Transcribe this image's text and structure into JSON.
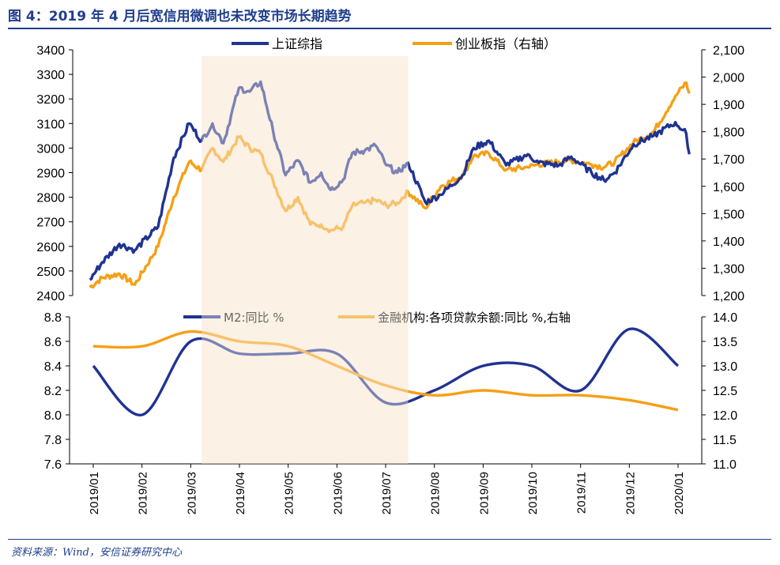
{
  "title": "图 4：2019 年 4 月后宽信用微调也未改变市场长期趋势",
  "source": "资料来源：Wind，安信证券研究中心",
  "colors": {
    "navy": "#1f3392",
    "orange": "#f5a016",
    "shade": "#fbf1e5",
    "title_blue": "#1f3e8c"
  },
  "chart_data": [
    {
      "type": "line",
      "panel": "top",
      "shaded_range": [
        "2019-03-15",
        "2019-07-26"
      ],
      "legend": [
        "上证综指",
        "创业板指（右轴）"
      ],
      "yleft": {
        "ylim": [
          2400,
          3400
        ],
        "ticks": [
          "2400",
          "2500",
          "2600",
          "2700",
          "2800",
          "2900",
          "3000",
          "3100",
          "3200",
          "3300",
          "3400"
        ]
      },
      "yright": {
        "ylim": [
          1200,
          2100
        ],
        "ticks": [
          "1,200",
          "1,300",
          "1,400",
          "1,500",
          "1,600",
          "1,700",
          "1,800",
          "1,900",
          "2,000",
          "2,100"
        ]
      },
      "series": [
        {
          "name": "上证综指",
          "axis": "left",
          "points": [
            [
              "2019-01-02",
              2465
            ],
            [
              "2019-01-10",
              2535
            ],
            [
              "2019-01-21",
              2610
            ],
            [
              "2019-01-31",
              2585
            ],
            [
              "2019-02-15",
              2680
            ],
            [
              "2019-02-25",
              2960
            ],
            [
              "2019-03-07",
              3100
            ],
            [
              "2019-03-15",
              3030
            ],
            [
              "2019-03-22",
              3100
            ],
            [
              "2019-03-29",
              3020
            ],
            [
              "2019-04-08",
              3245
            ],
            [
              "2019-04-15",
              3230
            ],
            [
              "2019-04-22",
              3270
            ],
            [
              "2019-04-30",
              3070
            ],
            [
              "2019-05-08",
              2890
            ],
            [
              "2019-05-16",
              2950
            ],
            [
              "2019-05-24",
              2860
            ],
            [
              "2019-05-31",
              2900
            ],
            [
              "2019-06-06",
              2830
            ],
            [
              "2019-06-14",
              2870
            ],
            [
              "2019-06-20",
              2980
            ],
            [
              "2019-06-28",
              2990
            ],
            [
              "2019-07-05",
              3010
            ],
            [
              "2019-07-12",
              2930
            ],
            [
              "2019-07-19",
              2900
            ],
            [
              "2019-07-26",
              2940
            ],
            [
              "2019-08-06",
              2780
            ],
            [
              "2019-08-16",
              2810
            ],
            [
              "2019-08-30",
              2890
            ],
            [
              "2019-09-06",
              3000
            ],
            [
              "2019-09-16",
              3030
            ],
            [
              "2019-09-27",
              2930
            ],
            [
              "2019-10-11",
              2975
            ],
            [
              "2019-10-18",
              2940
            ],
            [
              "2019-10-31",
              2930
            ],
            [
              "2019-11-08",
              2965
            ],
            [
              "2019-11-21",
              2900
            ],
            [
              "2019-11-29",
              2870
            ],
            [
              "2019-12-06",
              2900
            ],
            [
              "2019-12-18",
              3015
            ],
            [
              "2019-12-31",
              3050
            ],
            [
              "2020-01-14",
              3105
            ],
            [
              "2020-01-21",
              3060
            ],
            [
              "2020-01-23",
              2975
            ]
          ]
        },
        {
          "name": "创业板指（右轴）",
          "axis": "right",
          "points": [
            [
              "2019-01-02",
              1230
            ],
            [
              "2019-01-10",
              1265
            ],
            [
              "2019-01-21",
              1280
            ],
            [
              "2019-01-31",
              1240
            ],
            [
              "2019-02-15",
              1380
            ],
            [
              "2019-02-25",
              1560
            ],
            [
              "2019-03-07",
              1690
            ],
            [
              "2019-03-15",
              1660
            ],
            [
              "2019-03-22",
              1740
            ],
            [
              "2019-03-29",
              1690
            ],
            [
              "2019-04-08",
              1780
            ],
            [
              "2019-04-15",
              1740
            ],
            [
              "2019-04-22",
              1720
            ],
            [
              "2019-04-30",
              1620
            ],
            [
              "2019-05-08",
              1510
            ],
            [
              "2019-05-16",
              1560
            ],
            [
              "2019-05-24",
              1460
            ],
            [
              "2019-05-31",
              1460
            ],
            [
              "2019-06-06",
              1440
            ],
            [
              "2019-06-14",
              1450
            ],
            [
              "2019-06-20",
              1530
            ],
            [
              "2019-06-28",
              1540
            ],
            [
              "2019-07-05",
              1550
            ],
            [
              "2019-07-12",
              1530
            ],
            [
              "2019-07-19",
              1540
            ],
            [
              "2019-07-26",
              1580
            ],
            [
              "2019-08-06",
              1520
            ],
            [
              "2019-08-16",
              1600
            ],
            [
              "2019-08-30",
              1640
            ],
            [
              "2019-09-06",
              1710
            ],
            [
              "2019-09-16",
              1720
            ],
            [
              "2019-09-27",
              1660
            ],
            [
              "2019-10-11",
              1670
            ],
            [
              "2019-10-18",
              1680
            ],
            [
              "2019-10-31",
              1690
            ],
            [
              "2019-11-08",
              1695
            ],
            [
              "2019-11-21",
              1680
            ],
            [
              "2019-11-29",
              1670
            ],
            [
              "2019-12-06",
              1690
            ],
            [
              "2019-12-18",
              1760
            ],
            [
              "2019-12-31",
              1800
            ],
            [
              "2020-01-14",
              1930
            ],
            [
              "2020-01-21",
              1980
            ],
            [
              "2020-01-23",
              1940
            ]
          ]
        }
      ]
    },
    {
      "type": "line",
      "panel": "bottom",
      "legend": [
        "M2:同比 %",
        "金融机构:各项贷款余额:同比 %,右轴"
      ],
      "categories": [
        "2019/01",
        "2019/02",
        "2019/03",
        "2019/04",
        "2019/05",
        "2019/06",
        "2019/07",
        "2019/08",
        "2019/09",
        "2019/10",
        "2019/11",
        "2019/12",
        "2020/01"
      ],
      "yleft": {
        "ylim": [
          7.6,
          8.8
        ],
        "ticks": [
          "7.6",
          "7.8",
          "8.0",
          "8.2",
          "8.4",
          "8.6",
          "8.8"
        ]
      },
      "yright": {
        "ylim": [
          11.0,
          14.0
        ],
        "ticks": [
          "11.0",
          "11.5",
          "12.0",
          "12.5",
          "13.0",
          "13.5",
          "14.0"
        ]
      },
      "series": [
        {
          "name": "M2:同比 %",
          "axis": "left",
          "values": [
            8.4,
            8.0,
            8.6,
            8.5,
            8.5,
            8.5,
            8.1,
            8.2,
            8.4,
            8.4,
            8.2,
            8.7,
            8.4
          ]
        },
        {
          "name": "金融机构:各项贷款余额:同比 %,右轴",
          "axis": "right",
          "values": [
            13.4,
            13.4,
            13.7,
            13.5,
            13.4,
            13.0,
            12.6,
            12.4,
            12.5,
            12.4,
            12.4,
            12.3,
            12.1
          ]
        }
      ]
    }
  ]
}
